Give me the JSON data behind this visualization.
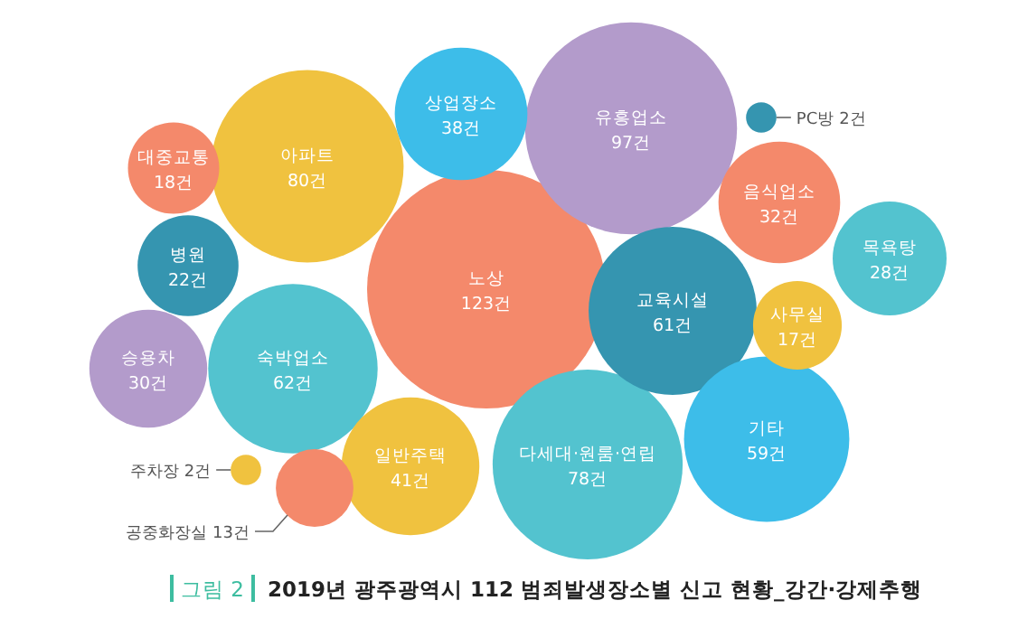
{
  "chart_data": {
    "type": "other",
    "title": "2019년 광주광역시 112 범죄발생장소별 신고 현황_강간·강제추행",
    "subtitle": "그림 2",
    "categories": [
      "노상",
      "유흥업소",
      "아파트",
      "다세대·원룸·연립",
      "숙박업소",
      "교육시설",
      "기타",
      "일반주택",
      "상업장소",
      "음식업소",
      "승용차",
      "목욕탕",
      "병원",
      "대중교통",
      "사무실",
      "공중화장실",
      "PC방",
      "주차장"
    ],
    "values": [
      123,
      97,
      80,
      78,
      62,
      61,
      59,
      41,
      38,
      32,
      30,
      28,
      22,
      18,
      17,
      13,
      2,
      2
    ],
    "value_labels": [
      "123건",
      "97건",
      "80건",
      "78건",
      "62건",
      "61건",
      "59건",
      "41건",
      "38건",
      "32건",
      "30건",
      "28건",
      "22건",
      "18건",
      "17건",
      "13건",
      "2건",
      "2건"
    ],
    "colors": [
      "#f4896b",
      "#b39bcb",
      "#f0c23f",
      "#53c3cf",
      "#53c3cf",
      "#3595b0",
      "#3dbde9",
      "#f0c23f",
      "#3dbde9",
      "#f4896b",
      "#b39bcb",
      "#53c3cf",
      "#3595b0",
      "#f4896b",
      "#f0c23f",
      "#f4896b",
      "#3595b0",
      "#f0c23f"
    ]
  }
}
